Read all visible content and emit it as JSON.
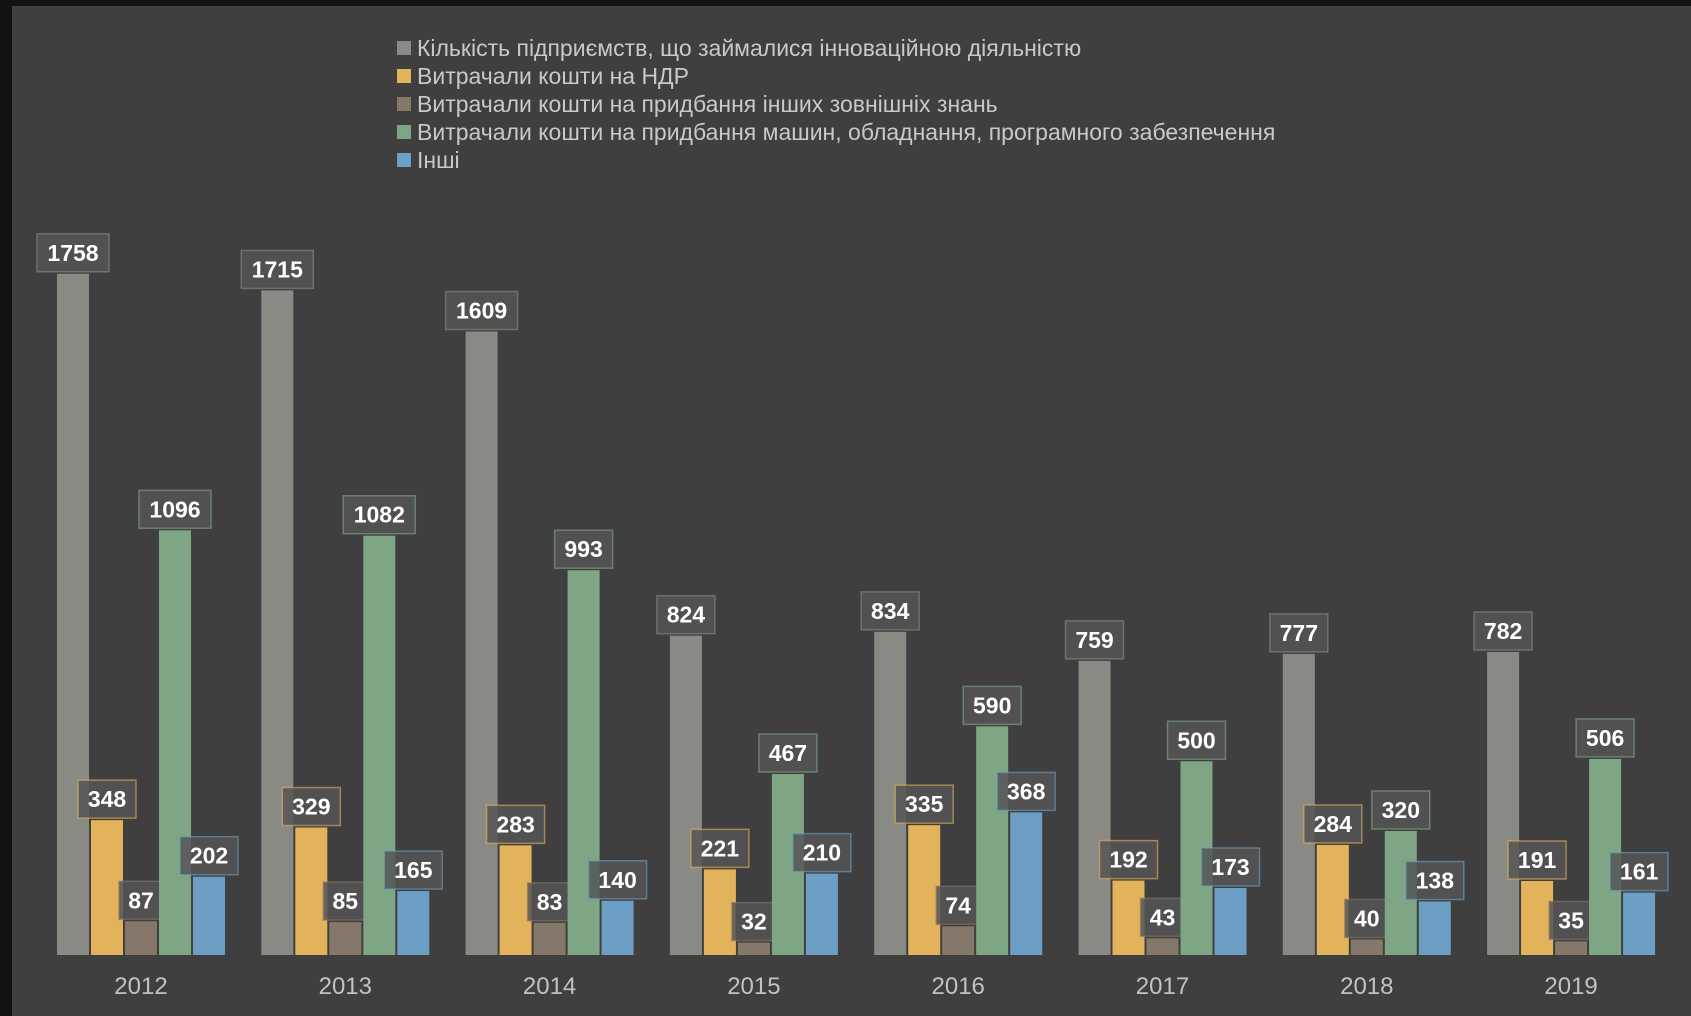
{
  "chart_data": {
    "type": "bar",
    "title": "",
    "xlabel": "",
    "ylabel": "",
    "categories": [
      "2012",
      "2013",
      "2014",
      "2015",
      "2016",
      "2017",
      "2018",
      "2019"
    ],
    "ylim": [
      0,
      1900
    ],
    "grid": false,
    "legend_position": "top-center",
    "series": [
      {
        "name": "Кількість підприємств, що займалися інноваційною діяльністю",
        "color": "#8a8a85",
        "values": [
          1758,
          1715,
          1609,
          824,
          834,
          759,
          777,
          782
        ]
      },
      {
        "name": "Витрачали кошти на НДР",
        "color": "#e3b35c",
        "values": [
          348,
          329,
          283,
          221,
          335,
          192,
          284,
          191
        ]
      },
      {
        "name": "Витрачали кошти на придбання інших зовнішніх знань",
        "color": "#85786a",
        "values": [
          87,
          85,
          83,
          32,
          74,
          43,
          40,
          35
        ]
      },
      {
        "name": "Витрачали кошти на придбання машин, обладнання, програмного забезпечення",
        "color": "#7fa684",
        "values": [
          1096,
          1082,
          993,
          467,
          590,
          500,
          320,
          506
        ]
      },
      {
        "name": "Інші",
        "color": "#6d9ec3",
        "values": [
          202,
          165,
          140,
          210,
          368,
          173,
          138,
          161
        ]
      }
    ]
  }
}
